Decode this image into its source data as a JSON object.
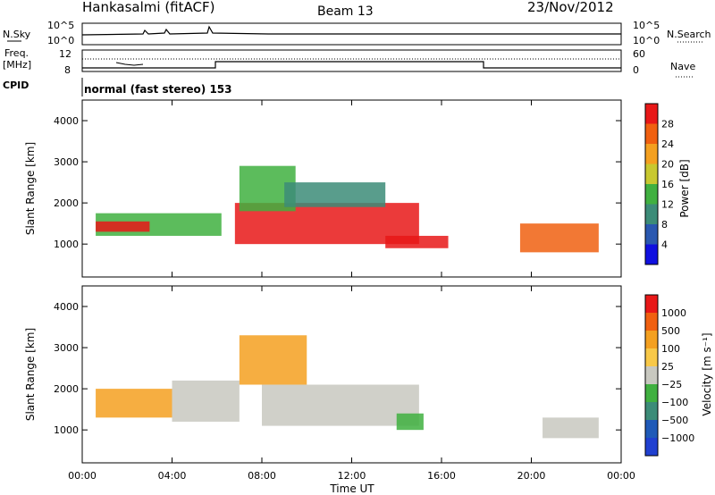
{
  "header": {
    "station": "Hankasalmi (fitACF)",
    "beam": "Beam 13",
    "date": "23/Nov/2012"
  },
  "nsky_panel": {
    "left_label": "N.Sky",
    "right_label": "N.Search",
    "left_ticks": [
      "10^5",
      "10^0"
    ],
    "right_ticks": [
      "10^5",
      "10^0"
    ]
  },
  "freq_panel": {
    "left_label_line1": "Freq.",
    "left_label_line2": "[MHz]",
    "left_ticks": [
      "12",
      "8"
    ],
    "right_label": "Nave",
    "right_ticks": [
      "60",
      "0"
    ]
  },
  "cpid": {
    "label": "CPID",
    "mode": "normal (fast stereo) 153"
  },
  "time_axis": {
    "label": "Time UT",
    "ticks": [
      "00:00",
      "04:00",
      "08:00",
      "12:00",
      "16:00",
      "20:00",
      "00:00"
    ]
  },
  "colors": {
    "power": [
      "#1010e0",
      "#2a58b0",
      "#3c8c78",
      "#40b040",
      "#c8c830",
      "#f4a020",
      "#f06010",
      "#e81818"
    ],
    "velocity": [
      "#e81818",
      "#f06010",
      "#f4a020",
      "#f8c848",
      "#c8c8c0",
      "#40b040",
      "#3c8c78",
      "#1f5ab8",
      "#2040d0"
    ]
  },
  "chart_data": [
    {
      "type": "heatmap",
      "ylabel": "Slant Range [km]",
      "yticks": [
        "1000",
        "2000",
        "3000",
        "4000"
      ],
      "ylim": [
        200,
        4500
      ],
      "xlim_hours": [
        0,
        24
      ],
      "colorbar": {
        "label": "Power [dB]",
        "ticks": [
          "4",
          "8",
          "12",
          "16",
          "20",
          "24",
          "28"
        ]
      },
      "regions": [
        {
          "t": [
            0.6,
            6.2
          ],
          "r": [
            1200,
            1750
          ],
          "color_index": 3
        },
        {
          "t": [
            0.6,
            3.0
          ],
          "r": [
            1300,
            1550
          ],
          "color_index": 7
        },
        {
          "t": [
            6.8,
            15.0
          ],
          "r": [
            1000,
            2000
          ],
          "color_index": 7
        },
        {
          "t": [
            7.0,
            9.5
          ],
          "r": [
            1800,
            2900
          ],
          "color_index": 3
        },
        {
          "t": [
            9.0,
            13.5
          ],
          "r": [
            1900,
            2500
          ],
          "color_index": 2
        },
        {
          "t": [
            13.5,
            16.3
          ],
          "r": [
            900,
            1200
          ],
          "color_index": 7
        },
        {
          "t": [
            19.5,
            23.0
          ],
          "r": [
            800,
            1500
          ],
          "color_index": 6
        }
      ]
    },
    {
      "type": "heatmap",
      "ylabel": "Slant Range [km]",
      "yticks": [
        "1000",
        "2000",
        "3000",
        "4000"
      ],
      "ylim": [
        200,
        4500
      ],
      "xlim_hours": [
        0,
        24
      ],
      "colorbar": {
        "label": "Velocity [m s⁻¹]",
        "ticks": [
          "1000",
          "500",
          "100",
          "25",
          "−25",
          "−100",
          "−500",
          "−1000"
        ]
      },
      "regions": [
        {
          "t": [
            0.6,
            4.0
          ],
          "r": [
            1300,
            2000
          ],
          "color_index": 2
        },
        {
          "t": [
            4.0,
            7.0
          ],
          "r": [
            1200,
            2200
          ],
          "color_index": 4
        },
        {
          "t": [
            7.0,
            10.0
          ],
          "r": [
            2100,
            3300
          ],
          "color_index": 2
        },
        {
          "t": [
            8.0,
            15.0
          ],
          "r": [
            1100,
            2100
          ],
          "color_index": 4
        },
        {
          "t": [
            14.0,
            15.2
          ],
          "r": [
            1000,
            1400
          ],
          "color_index": 5
        },
        {
          "t": [
            20.5,
            23.0
          ],
          "r": [
            800,
            1300
          ],
          "color_index": 4
        }
      ]
    }
  ]
}
